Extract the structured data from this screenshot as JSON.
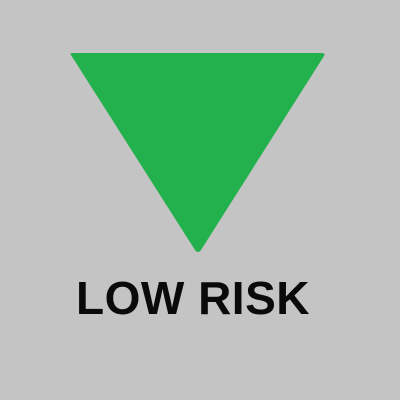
{
  "indicator": {
    "label": "LOW RISK",
    "icon": "down-triangle-icon",
    "colors": {
      "background": "#c4c4c4",
      "triangle": "#22b14c",
      "text": "#0a0a0a"
    }
  }
}
